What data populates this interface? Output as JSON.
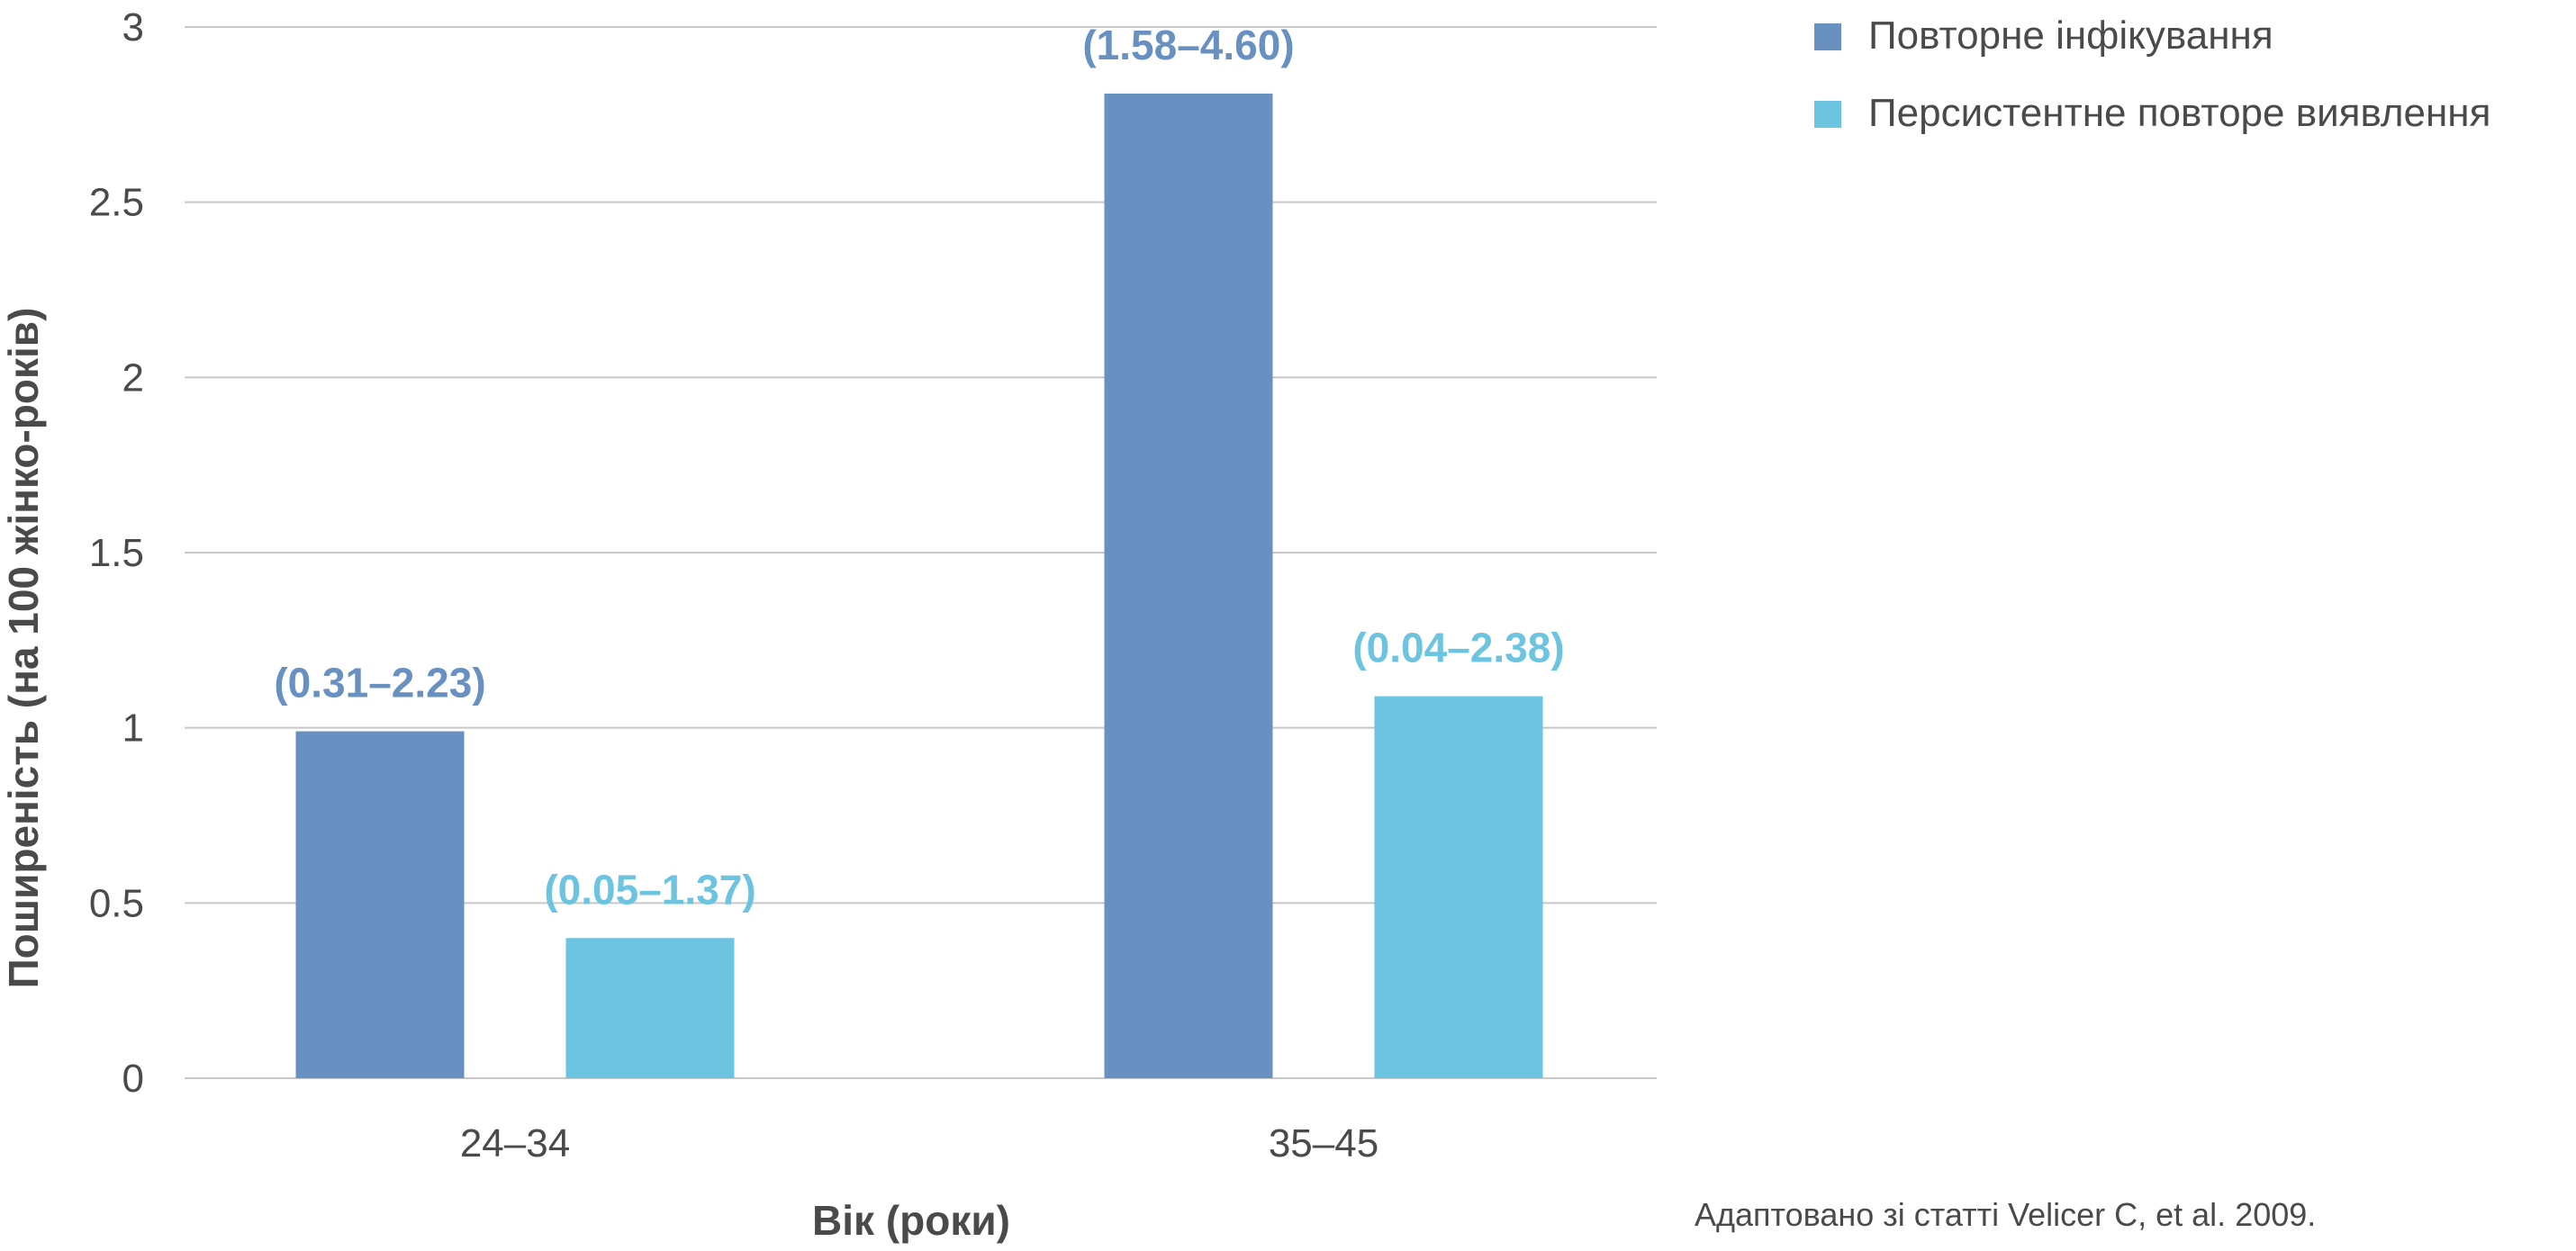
{
  "chart_data": {
    "type": "bar",
    "categories": [
      "24–34",
      "35–45"
    ],
    "series": [
      {
        "name": "Повторне інфікування",
        "color": "#6890c1",
        "values": [
          0.99,
          2.81
        ],
        "labels": [
          "(0.31–2.23)",
          "(1.58–4.60)"
        ]
      },
      {
        "name": "Персистентне повторе виявлення",
        "color": "#6cc4e0",
        "values": [
          0.4,
          1.09
        ],
        "labels": [
          "(0.05–1.37)",
          "(0.04–2.38)"
        ]
      }
    ],
    "ylim": [
      0,
      3
    ],
    "yticks": [
      0,
      0.5,
      1,
      1.5,
      2,
      2.5,
      3
    ],
    "ytick_labels": [
      "0",
      "0.5",
      "1",
      "1.5",
      "2",
      "2.5",
      "3"
    ],
    "xlabel": "Вік (роки)",
    "ylabel": "Поширеність (на 100 жінко-років)",
    "grid": true,
    "legend_position": "top-right"
  },
  "source_note": "Адаптовано зі статті Velicer C, et al. 2009."
}
